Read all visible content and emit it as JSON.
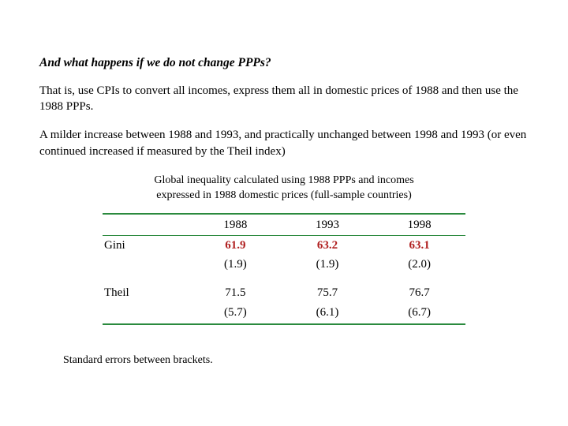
{
  "title": "And what happens if we do not change PPPs?",
  "para1": "That is, use CPIs to convert all incomes, express them all in domestic prices of 1988 and then use the 1988 PPPs.",
  "para2": "A milder increase between 1988 and 1993, and practically unchanged between 1998 and 1993 (or even continued increased if measured by the Theil index)",
  "caption": "Global inequality calculated using 1988 PPPs and incomes expressed in 1988 domestic prices (full-sample countries)",
  "table": {
    "columns": [
      "",
      "1988",
      "1993",
      "1998"
    ],
    "rows": [
      {
        "label": "Gini",
        "values": [
          "61.9",
          "63.2",
          "63.1"
        ],
        "se": [
          "(1.9)",
          "(1.9)",
          "(2.0)"
        ],
        "highlight": true
      },
      {
        "label": "Theil",
        "values": [
          "71.5",
          "75.7",
          "76.7"
        ],
        "se": [
          "(5.7)",
          "(6.1)",
          "(6.7)"
        ],
        "highlight": false
      }
    ],
    "rule_color": "#2b8a3e",
    "highlight_color": "#b02020"
  },
  "footnote": "Standard errors between brackets."
}
